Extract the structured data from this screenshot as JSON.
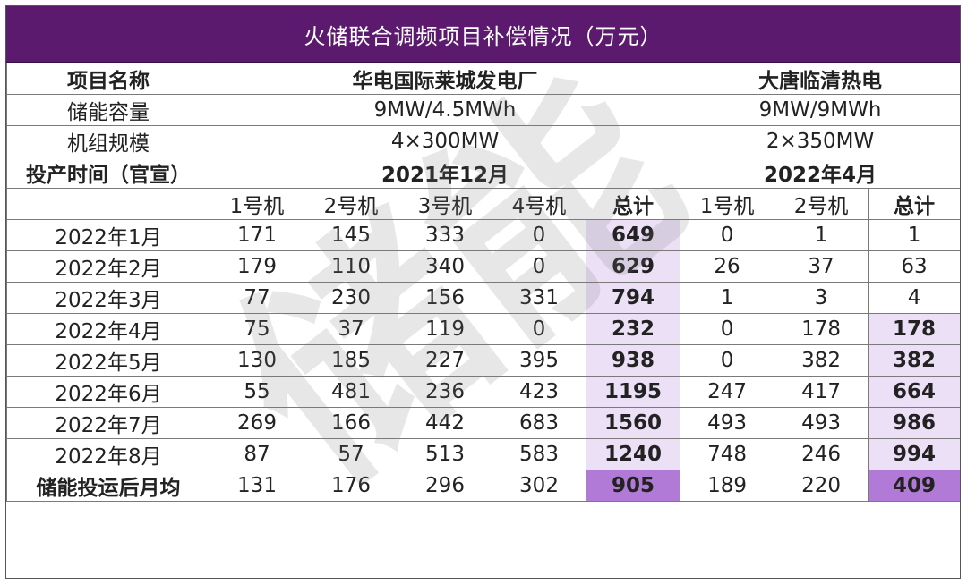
{
  "title": "火储联合调频项目补偿情况（万元）",
  "watermark": "储能",
  "header": {
    "project_label": "项目名称",
    "capacity_label": "储能容量",
    "unit_label": "机组规模",
    "date_label": "投产时间（官宣）",
    "plant1": {
      "name": "华电国际莱城发电厂",
      "capacity": "9MW/4.5MWh",
      "units": "4×300MW",
      "date": "2021年12月"
    },
    "plant2": {
      "name": "大唐临清热电",
      "capacity": "9MW/9MWh",
      "units": "2×350MW",
      "date": "2022年4月"
    }
  },
  "columns": {
    "p1": [
      "1号机",
      "2号机",
      "3号机",
      "4号机",
      "总计"
    ],
    "p2": [
      "1号机",
      "2号机",
      "总计"
    ]
  },
  "rows": [
    {
      "label": "2022年1月",
      "p1": [
        "171",
        "145",
        "333",
        "0",
        "649"
      ],
      "p2": [
        "0",
        "1",
        "1"
      ]
    },
    {
      "label": "2022年2月",
      "p1": [
        "179",
        "110",
        "340",
        "0",
        "629"
      ],
      "p2": [
        "26",
        "37",
        "63"
      ]
    },
    {
      "label": "2022年3月",
      "p1": [
        "77",
        "230",
        "156",
        "331",
        "794"
      ],
      "p2": [
        "1",
        "3",
        "4"
      ]
    },
    {
      "label": "2022年4月",
      "p1": [
        "75",
        "37",
        "119",
        "0",
        "232"
      ],
      "p2": [
        "0",
        "178",
        "178"
      ]
    },
    {
      "label": "2022年5月",
      "p1": [
        "130",
        "185",
        "227",
        "395",
        "938"
      ],
      "p2": [
        "0",
        "382",
        "382"
      ]
    },
    {
      "label": "2022年6月",
      "p1": [
        "55",
        "481",
        "236",
        "423",
        "1195"
      ],
      "p2": [
        "247",
        "417",
        "664"
      ]
    },
    {
      "label": "2022年7月",
      "p1": [
        "269",
        "166",
        "442",
        "683",
        "1560"
      ],
      "p2": [
        "493",
        "493",
        "986"
      ]
    },
    {
      "label": "2022年8月",
      "p1": [
        "87",
        "57",
        "513",
        "583",
        "1240"
      ],
      "p2": [
        "748",
        "246",
        "994"
      ]
    }
  ],
  "avg_row": {
    "label": "储能投运后月均",
    "p1": [
      "131",
      "176",
      "296",
      "302",
      "905"
    ],
    "p2": [
      "189",
      "220",
      "409"
    ]
  },
  "colors": {
    "header_bg": "#5b1a6e",
    "light_highlight": "#ece0f7",
    "dark_highlight": "#b07ad6"
  }
}
